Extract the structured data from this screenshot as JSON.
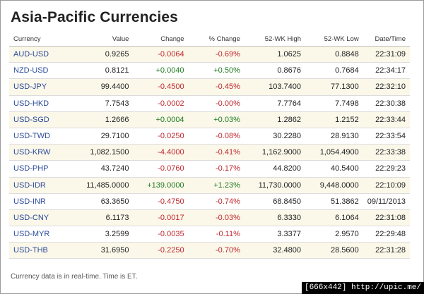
{
  "title": "Asia-Pacific Currencies",
  "columns": [
    "Currency",
    "Value",
    "Change",
    "% Change",
    "52-WK High",
    "52-WK Low",
    "Date/Time"
  ],
  "rows": [
    {
      "currency": "AUD-USD",
      "value": "0.9265",
      "change": "-0.0064",
      "pct": "-0.69%",
      "high": "1.0625",
      "low": "0.8848",
      "time": "22:31:09",
      "dir": "neg"
    },
    {
      "currency": "NZD-USD",
      "value": "0.8121",
      "change": "+0.0040",
      "pct": "+0.50%",
      "high": "0.8676",
      "low": "0.7684",
      "time": "22:34:17",
      "dir": "pos"
    },
    {
      "currency": "USD-JPY",
      "value": "99.4400",
      "change": "-0.4500",
      "pct": "-0.45%",
      "high": "103.7400",
      "low": "77.1300",
      "time": "22:32:10",
      "dir": "neg"
    },
    {
      "currency": "USD-HKD",
      "value": "7.7543",
      "change": "-0.0002",
      "pct": "-0.00%",
      "high": "7.7764",
      "low": "7.7498",
      "time": "22:30:38",
      "dir": "neg"
    },
    {
      "currency": "USD-SGD",
      "value": "1.2666",
      "change": "+0.0004",
      "pct": "+0.03%",
      "high": "1.2862",
      "low": "1.2152",
      "time": "22:33:44",
      "dir": "pos"
    },
    {
      "currency": "USD-TWD",
      "value": "29.7100",
      "change": "-0.0250",
      "pct": "-0.08%",
      "high": "30.2280",
      "low": "28.9130",
      "time": "22:33:54",
      "dir": "neg"
    },
    {
      "currency": "USD-KRW",
      "value": "1,082.1500",
      "change": "-4.4000",
      "pct": "-0.41%",
      "high": "1,162.9000",
      "low": "1,054.4900",
      "time": "22:33:38",
      "dir": "neg"
    },
    {
      "currency": "USD-PHP",
      "value": "43.7240",
      "change": "-0.0760",
      "pct": "-0.17%",
      "high": "44.8200",
      "low": "40.5400",
      "time": "22:29:23",
      "dir": "neg"
    },
    {
      "currency": "USD-IDR",
      "value": "11,485.0000",
      "change": "+139.0000",
      "pct": "+1.23%",
      "high": "11,730.0000",
      "low": "9,448.0000",
      "time": "22:10:09",
      "dir": "pos"
    },
    {
      "currency": "USD-INR",
      "value": "63.3650",
      "change": "-0.4750",
      "pct": "-0.74%",
      "high": "68.8450",
      "low": "51.3862",
      "time": "09/11/2013",
      "dir": "neg"
    },
    {
      "currency": "USD-CNY",
      "value": "6.1173",
      "change": "-0.0017",
      "pct": "-0.03%",
      "high": "6.3330",
      "low": "6.1064",
      "time": "22:31:08",
      "dir": "neg"
    },
    {
      "currency": "USD-MYR",
      "value": "3.2599",
      "change": "-0.0035",
      "pct": "-0.11%",
      "high": "3.3377",
      "low": "2.9570",
      "time": "22:29:48",
      "dir": "neg"
    },
    {
      "currency": "USD-THB",
      "value": "31.6950",
      "change": "-0.2250",
      "pct": "-0.70%",
      "high": "32.4800",
      "low": "28.5600",
      "time": "22:31:28",
      "dir": "neg"
    }
  ],
  "footnote": "Currency data is in real-time. Time is ET.",
  "watermark": "[666x442] http://upic.me/",
  "colors": {
    "positive": "#1f7a1f",
    "negative": "#c1272d",
    "symbol": "#2a4a9a",
    "row_shade": "#fbf8ea"
  }
}
